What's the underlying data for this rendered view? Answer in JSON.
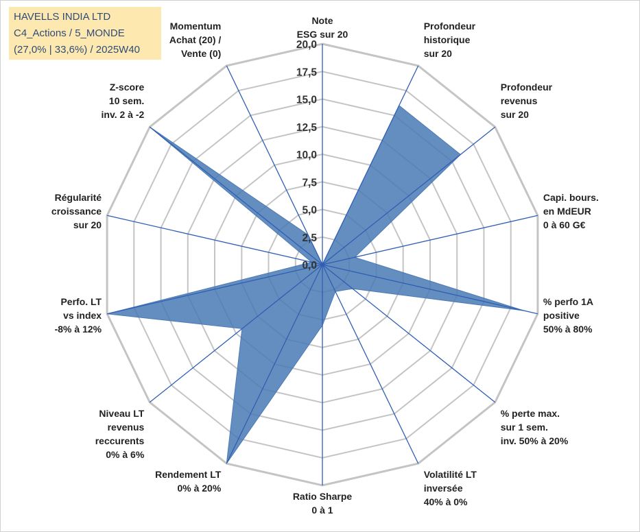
{
  "info_box": {
    "line1": "HAVELLS INDIA LTD",
    "line2": "C4_Actions / 5_MONDE",
    "line3": "(27,0% | 33,6%) / 2025W40"
  },
  "colors": {
    "fill": "#4a7ab5",
    "grid": "#c4c4c4",
    "spoke": "#2f5fb3",
    "info_box_bg": "#fde9b0",
    "info_box_text": "#2e4b79"
  },
  "chart_data": {
    "type": "radar",
    "scale": {
      "min": 0,
      "max": 20,
      "step": 2.5,
      "tick_labels": [
        "0,0",
        "2,5",
        "5,0",
        "7,5",
        "10,0",
        "12,5",
        "15,0",
        "17,5",
        "20,0"
      ]
    },
    "axes": [
      {
        "label": [
          "Note",
          "ESG sur 20"
        ],
        "value": 0
      },
      {
        "label": [
          "Profondeur",
          "historique",
          "sur 20"
        ],
        "value": 16
      },
      {
        "label": [
          "Profondeur",
          "revenus",
          "sur 20"
        ],
        "value": 16
      },
      {
        "label": [
          "Capi. bours.",
          "en MdEUR",
          "0 à 60 G€"
        ],
        "value": 3
      },
      {
        "label": [
          "% perfo 1A",
          "positive",
          "50% à 80%"
        ],
        "value": 18.7
      },
      {
        "label": [
          "% perte max.",
          "sur 1 sem.",
          "inv. 50% à 20%"
        ],
        "value": 3.5
      },
      {
        "label": [
          "Volatilité LT",
          "inversée",
          "40% à 0%"
        ],
        "value": 2.7
      },
      {
        "label": [
          "Ratio Sharpe",
          "0 à 1"
        ],
        "value": 5.5
      },
      {
        "label": [
          "Rendement LT",
          "0% à 20%"
        ],
        "value": 20
      },
      {
        "label": [
          "Niveau LT",
          "revenus",
          "reccurents",
          "0% à 6%"
        ],
        "value": 9.3
      },
      {
        "label": [
          "Perfo. LT",
          "vs index",
          "-8% à 12%"
        ],
        "value": 20
      },
      {
        "label": [
          "Régularité",
          "croissance",
          "sur 20"
        ],
        "value": 1
      },
      {
        "label": [
          "Z-score",
          "10 sem.",
          "inv. 2 à -2"
        ],
        "value": 20
      },
      {
        "label": [
          "Momentum",
          "Achat (20) /",
          "Vente (0)"
        ],
        "value": 3
      }
    ]
  }
}
